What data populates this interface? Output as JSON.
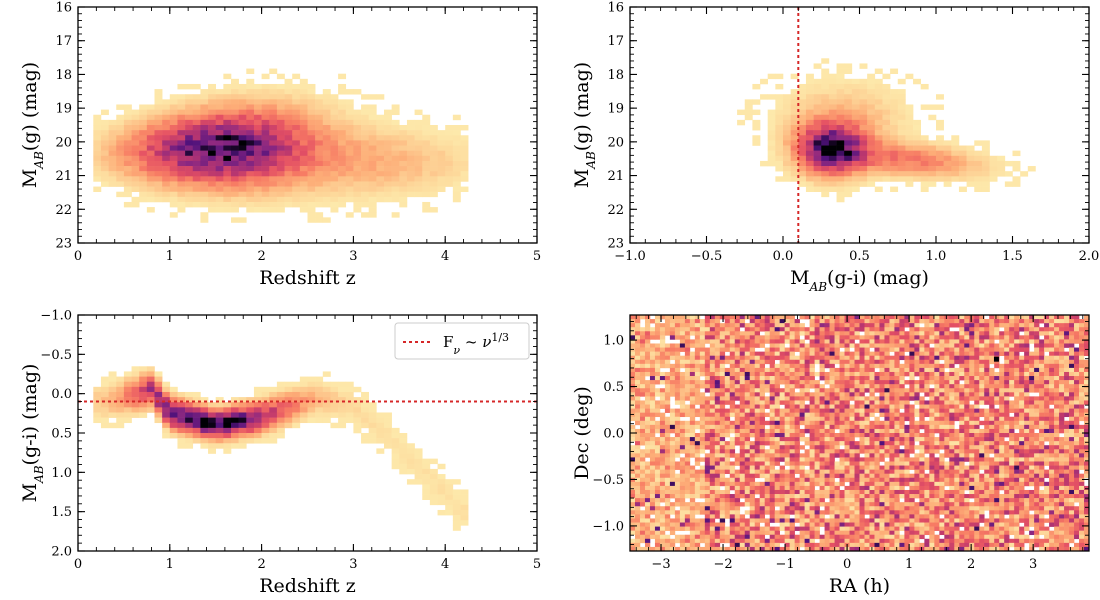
{
  "chart_data": [
    {
      "type": "heatmap",
      "panel": "z-vs-Mg",
      "xlabel": "Redshift z",
      "ylabel_parts": [
        "M",
        "AB",
        "(g) (mag)"
      ],
      "xlim": [
        0,
        5
      ],
      "ylim": [
        23,
        16
      ],
      "y_inverted": true,
      "xticks": [
        0,
        1,
        2,
        3,
        4,
        5
      ],
      "xtick_labels": [
        "0",
        "1",
        "2",
        "3",
        "4",
        "5"
      ],
      "yticks": [
        16,
        17,
        18,
        19,
        20,
        21,
        22,
        23
      ],
      "ytick_labels": [
        "16",
        "17",
        "18",
        "19",
        "20",
        "21",
        "22",
        "23"
      ],
      "colormap": "magma_r",
      "density_model": {
        "description": "2D histogram of quasar g-band absolute magnitude vs redshift",
        "peak_x": 1.5,
        "peak_y": 20.3,
        "x_extent": [
          0.2,
          4.2
        ],
        "y_extent": [
          16.8,
          22.2
        ]
      }
    },
    {
      "type": "heatmap",
      "panel": "gi-vs-Mg",
      "xlabel_parts": [
        "M",
        "AB",
        "(g-i) (mag)"
      ],
      "ylabel_parts": [
        "M",
        "AB",
        "(g) (mag)"
      ],
      "xlim": [
        -1.0,
        2.0
      ],
      "ylim": [
        23,
        16
      ],
      "y_inverted": true,
      "xticks": [
        -1.0,
        -0.5,
        0.0,
        0.5,
        1.0,
        1.5,
        2.0
      ],
      "xtick_labels": [
        "−1.0",
        "−0.5",
        "0.0",
        "0.5",
        "1.0",
        "1.5",
        "2.0"
      ],
      "yticks": [
        16,
        17,
        18,
        19,
        20,
        21,
        22,
        23
      ],
      "ytick_labels": [
        "16",
        "17",
        "18",
        "19",
        "20",
        "21",
        "22",
        "23"
      ],
      "vline": {
        "x": 0.1,
        "style": "dotted",
        "color": "#d62728"
      },
      "colormap": "magma_r",
      "density_model": {
        "peak_x": 0.3,
        "peak_y": 20.25,
        "x_extent": [
          -0.2,
          1.7
        ],
        "y_extent": [
          17.0,
          21.8
        ]
      }
    },
    {
      "type": "heatmap",
      "panel": "z-vs-gi",
      "xlabel": "Redshift z",
      "ylabel_parts": [
        "M",
        "AB",
        "(g-i) (mag)"
      ],
      "xlim": [
        0,
        5
      ],
      "ylim": [
        2.0,
        -1.0
      ],
      "y_inverted": true,
      "xticks": [
        0,
        1,
        2,
        3,
        4,
        5
      ],
      "xtick_labels": [
        "0",
        "1",
        "2",
        "3",
        "4",
        "5"
      ],
      "yticks": [
        -1.0,
        -0.5,
        0.0,
        0.5,
        1.0,
        1.5,
        2.0
      ],
      "ytick_labels": [
        "−1.0",
        "−0.5",
        "0.0",
        "0.5",
        "1.0",
        "1.5",
        "2.0"
      ],
      "hline": {
        "y": 0.1,
        "style": "dotted",
        "color": "#d62728"
      },
      "legend": {
        "position": "top-right",
        "entries": [
          {
            "label_prefix": "F",
            "label_sub": "ν",
            "label_mid": " ~ ν",
            "label_sup": "1/3"
          }
        ]
      },
      "colormap": "magma_r",
      "density_model": {
        "ridge": [
          [
            0.3,
            0.1
          ],
          [
            0.8,
            -0.05
          ],
          [
            1.0,
            0.25
          ],
          [
            1.5,
            0.4
          ],
          [
            2.0,
            0.3
          ],
          [
            2.6,
            0.05
          ],
          [
            3.0,
            0.15
          ],
          [
            3.5,
            0.7
          ],
          [
            4.2,
            1.5
          ]
        ],
        "x_extent": [
          0.2,
          4.2
        ],
        "y_extent": [
          -0.2,
          1.9
        ]
      }
    },
    {
      "type": "heatmap",
      "panel": "ra-vs-dec",
      "xlabel": "RA (h)",
      "ylabel": "Dec (deg)",
      "xlim": [
        -3.5,
        3.9
      ],
      "ylim": [
        -1.27,
        1.27
      ],
      "xticks": [
        -3,
        -2,
        -1,
        0,
        1,
        2,
        3
      ],
      "xtick_labels": [
        "−3",
        "−2",
        "−1",
        "0",
        "1",
        "2",
        "3"
      ],
      "yticks": [
        -1.0,
        -0.5,
        0.0,
        0.5,
        1.0
      ],
      "ytick_labels": [
        "−1.0",
        "−0.5",
        "0.0",
        "0.5",
        "1.0"
      ],
      "colormap": "magma_r",
      "density_model": {
        "description": "roughly uniform sky coverage, slightly sparser at RA < -2h"
      }
    }
  ]
}
